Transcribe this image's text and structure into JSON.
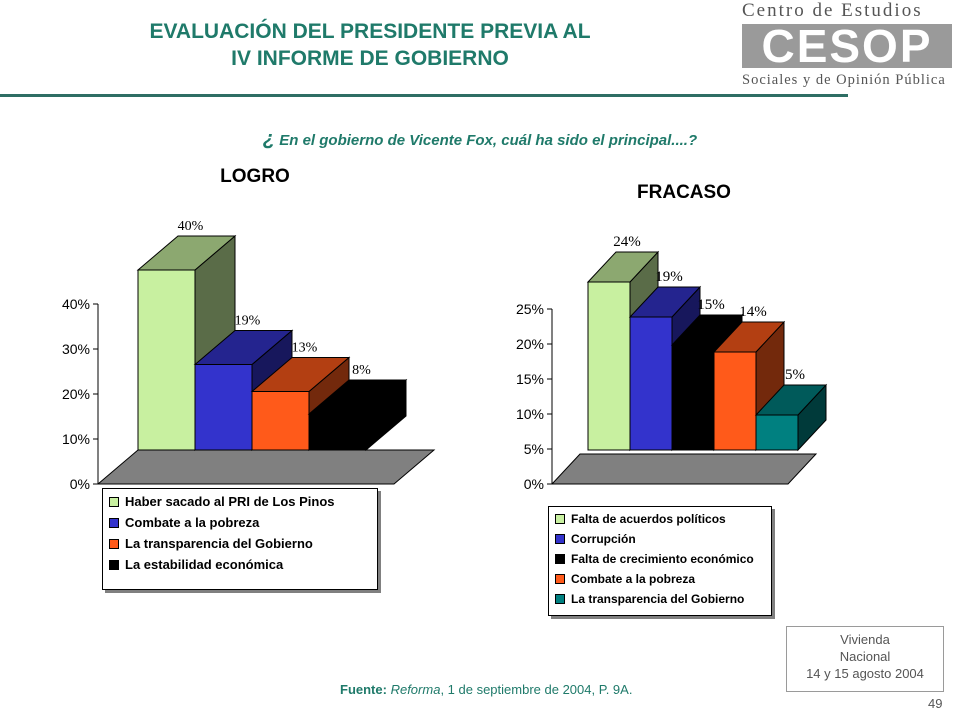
{
  "header": {
    "title_line1": "EVALUACIÓN DEL PRESIDENTE PREVIA AL",
    "title_line2": "IV INFORME DE GOBIERNO",
    "logo_line1": "Centro de Estudios",
    "logo_mark": "CESOP",
    "logo_line3": "Sociales y de Opinión Pública"
  },
  "question_mark": "¿",
  "question": "En el gobierno de Vicente Fox, cuál ha sido el principal....?",
  "chart_data": [
    {
      "type": "bar",
      "title": "LOGRO",
      "categories": [
        "Haber sacado al PRI de Los Pinos",
        "Combate a la pobreza",
        "La transparencia del Gobierno",
        "La estabilidad económica"
      ],
      "values": [
        40,
        19,
        13,
        8
      ],
      "data_labels": [
        "40%",
        "19%",
        "13%",
        "8%"
      ],
      "colors": [
        "#c8f0a0",
        "#3333cc",
        "#ff5a1a",
        "#000000"
      ],
      "yticks": [
        "0%",
        "10%",
        "20%",
        "30%",
        "40%"
      ],
      "ylim": [
        0,
        40
      ],
      "legend_position": "bottom"
    },
    {
      "type": "bar",
      "title": "FRACASO",
      "categories": [
        "Falta de acuerdos políticos",
        "Corrupción",
        "Falta de crecimiento económico",
        "Combate a la pobreza",
        "La transparencia del Gobierno"
      ],
      "values": [
        24,
        19,
        15,
        14,
        5
      ],
      "data_labels": [
        "24%",
        "19%",
        "15%",
        "14%",
        "5%"
      ],
      "colors": [
        "#c8f0a0",
        "#3333cc",
        "#000000",
        "#ff5a1a",
        "#008080"
      ],
      "yticks": [
        "0%",
        "5%",
        "10%",
        "15%",
        "20%",
        "25%"
      ],
      "ylim": [
        0,
        25
      ],
      "legend_position": "bottom"
    }
  ],
  "footer": {
    "source_label": "Fuente:",
    "source_pub": "Reforma",
    "source_rest": ", 1 de septiembre de 2004, P. 9A.",
    "note_line1": "Vivienda",
    "note_line2": "Nacional",
    "note_line3": "14 y 15 agosto 2004",
    "page_number": "49"
  }
}
